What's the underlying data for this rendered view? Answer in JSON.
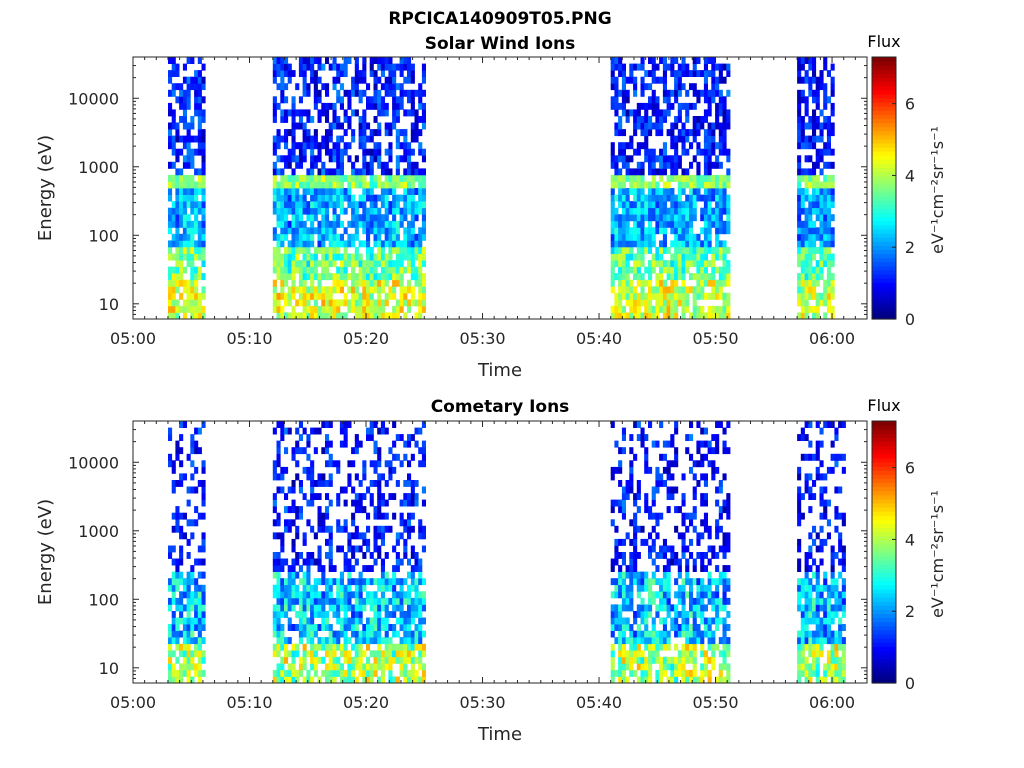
{
  "figure": {
    "title": "RPCICA140909T05.PNG"
  },
  "chart_data": [
    {
      "type": "heatmap",
      "title": "Solar Wind Ions",
      "xlabel": "Time",
      "ylabel": "Energy (eV)",
      "x_ticks": [
        "05:00",
        "05:10",
        "05:20",
        "05:30",
        "05:40",
        "05:50",
        "06:00"
      ],
      "xlim_minutes": [
        0,
        63
      ],
      "y_ticks": [
        "10",
        "100",
        "1000",
        "10000"
      ],
      "y_scale": "log",
      "ylim_eV": [
        6,
        40000
      ],
      "colorbar": {
        "title": "Flux",
        "unit": "eV⁻¹cm⁻²sr⁻¹s⁻¹",
        "ticks": [
          "0",
          "2",
          "4",
          "6"
        ],
        "range": [
          0,
          7.3
        ],
        "colormap": "jet"
      },
      "active_intervals": [
        {
          "start": "05:03",
          "end": "05:06"
        },
        {
          "start": "05:12",
          "end": "05:25"
        },
        {
          "start": "05:41",
          "end": "05:51"
        },
        {
          "start": "05:57",
          "end": "06:00"
        }
      ]
    },
    {
      "type": "heatmap",
      "title": "Cometary Ions",
      "xlabel": "Time",
      "ylabel": "Energy (eV)",
      "x_ticks": [
        "05:00",
        "05:10",
        "05:20",
        "05:30",
        "05:40",
        "05:50",
        "06:00"
      ],
      "xlim_minutes": [
        0,
        63
      ],
      "y_ticks": [
        "10",
        "100",
        "1000",
        "10000"
      ],
      "y_scale": "log",
      "ylim_eV": [
        6,
        40000
      ],
      "colorbar": {
        "title": "Flux",
        "unit": "eV⁻¹cm⁻²sr⁻¹s⁻¹",
        "ticks": [
          "0",
          "2",
          "4",
          "6"
        ],
        "range": [
          0,
          7.3
        ],
        "colormap": "jet"
      },
      "active_intervals": [
        {
          "start": "05:03",
          "end": "05:06"
        },
        {
          "start": "05:12",
          "end": "05:25"
        },
        {
          "start": "05:41",
          "end": "05:51"
        },
        {
          "start": "05:57",
          "end": "06:01"
        }
      ]
    }
  ]
}
